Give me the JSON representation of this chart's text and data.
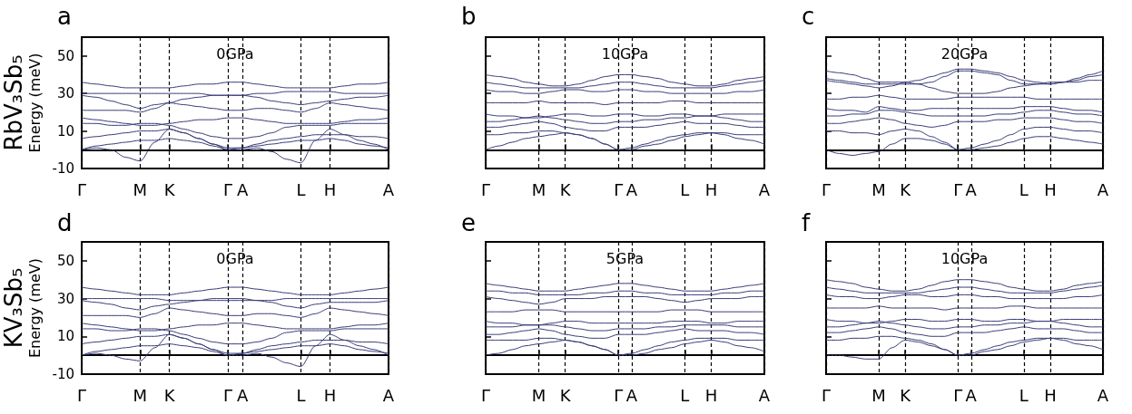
{
  "chart_data": [
    {
      "type": "line",
      "title": "a",
      "ylabel": "Energy (meV)",
      "annotations": [
        "0GPa",
        "RbV₃Sb₅"
      ],
      "categories": [
        "Γ",
        null,
        null,
        null,
        "M",
        null,
        "K",
        null,
        null,
        null,
        "Γ",
        "A",
        null,
        null,
        null,
        "L",
        null,
        "H",
        null,
        null,
        null,
        "A"
      ],
      "ylim": [
        -10,
        60
      ],
      "yticks": [
        -10,
        10,
        30,
        50
      ],
      "grid": "x",
      "line_style": "solid",
      "ref_lines": [
        {
          "axis": "y",
          "value": 0,
          "line_style": "dotted",
          "color": "#000000"
        }
      ],
      "series": [
        {
          "color": "#3a3d78",
          "values": [
            36,
            35,
            34,
            33,
            33,
            33,
            33,
            34,
            35,
            35,
            36,
            36,
            35,
            34,
            33,
            33,
            33,
            33,
            34,
            35,
            35,
            36
          ]
        },
        {
          "color": "#3a3d78",
          "values": [
            30,
            30,
            30,
            30,
            30,
            30,
            30,
            30,
            30,
            29,
            29,
            29,
            30,
            30,
            31,
            31,
            31,
            31,
            30,
            30,
            30,
            30
          ]
        },
        {
          "color": "#3a3d78",
          "values": [
            29,
            28,
            26,
            24,
            22,
            24,
            25,
            27,
            28,
            29,
            29,
            29,
            28,
            26,
            25,
            24,
            25,
            26,
            27,
            28,
            28,
            29
          ]
        },
        {
          "color": "#3a3d78",
          "values": [
            21,
            21,
            21,
            21,
            20,
            22,
            25,
            24,
            23,
            22,
            21,
            21,
            22,
            22,
            21,
            20,
            22,
            25,
            24,
            23,
            22,
            21
          ]
        },
        {
          "color": "#3a3d78",
          "values": [
            17,
            16,
            15,
            14,
            13,
            13,
            14,
            15,
            16,
            16,
            17,
            17,
            16,
            15,
            14,
            14,
            14,
            14,
            15,
            16,
            16,
            17
          ]
        },
        {
          "color": "#3a3d78",
          "values": [
            14,
            14,
            13,
            13,
            14,
            14,
            13,
            11,
            9,
            7,
            6,
            6,
            7,
            9,
            12,
            13,
            13,
            13,
            14,
            14,
            14,
            14
          ]
        },
        {
          "color": "#3a3d78",
          "values": [
            6,
            7,
            8,
            9,
            10,
            10,
            11,
            9,
            6,
            3,
            1,
            1,
            3,
            5,
            6,
            7,
            8,
            8,
            8,
            7,
            7,
            6
          ]
        },
        {
          "color": "#3a3d78",
          "values": [
            0,
            2,
            3,
            4,
            5,
            5,
            6,
            5,
            4,
            2,
            0,
            1,
            2,
            3,
            4,
            5,
            5,
            6,
            5,
            3,
            2,
            1
          ]
        },
        {
          "color": "#3a3d78",
          "values": [
            0,
            1,
            0,
            -4,
            -6,
            4,
            11,
            9,
            6,
            3,
            0,
            0,
            1,
            -1,
            -5,
            -7,
            5,
            11,
            8,
            5,
            3,
            0
          ]
        }
      ]
    },
    {
      "type": "line",
      "title": "b",
      "annotations": [
        "10GPa"
      ],
      "tick_labels": "x",
      "categories": [
        "Γ",
        null,
        null,
        null,
        "M",
        null,
        "K",
        null,
        null,
        null,
        "Γ",
        "A",
        null,
        null,
        null,
        "L",
        null,
        "H",
        null,
        null,
        null,
        "A"
      ],
      "ylim": [
        -10,
        60
      ],
      "yticks": [
        -10,
        10,
        30,
        50
      ],
      "grid": "x",
      "line_style": "solid",
      "ref_lines": [
        {
          "axis": "y",
          "value": 0,
          "line_style": "dotted",
          "color": "#000000"
        }
      ],
      "series": [
        {
          "color": "#3a3d78",
          "values": [
            40,
            39,
            38,
            36,
            35,
            34,
            34,
            35,
            37,
            39,
            40,
            40,
            39,
            38,
            36,
            35,
            34,
            34,
            35,
            37,
            38,
            39
          ]
        },
        {
          "color": "#3a3d78",
          "values": [
            36,
            35,
            34,
            33,
            33,
            33,
            33,
            33,
            34,
            35,
            36,
            36,
            35,
            34,
            33,
            33,
            33,
            33,
            34,
            35,
            36,
            37
          ]
        },
        {
          "color": "#3a3d78",
          "values": [
            32,
            31,
            31,
            30,
            30,
            31,
            32,
            32,
            31,
            31,
            32,
            32,
            31,
            31,
            30,
            30,
            30,
            30,
            30,
            31,
            31,
            32
          ]
        },
        {
          "color": "#3a3d78",
          "values": [
            25,
            25,
            25,
            25,
            26,
            25,
            25,
            25,
            25,
            24,
            25,
            25,
            25,
            25,
            26,
            26,
            25,
            25,
            25,
            25,
            25,
            25
          ]
        },
        {
          "color": "#3a3d78",
          "values": [
            19,
            18,
            18,
            17,
            17,
            18,
            19,
            19,
            18,
            18,
            19,
            19,
            18,
            18,
            19,
            19,
            18,
            18,
            19,
            19,
            19,
            19
          ]
        },
        {
          "color": "#3a3d78",
          "values": [
            15,
            15,
            16,
            17,
            18,
            17,
            16,
            15,
            14,
            14,
            15,
            15,
            16,
            16,
            17,
            17,
            18,
            18,
            17,
            16,
            15,
            15
          ]
        },
        {
          "color": "#3a3d78",
          "values": [
            12,
            12,
            13,
            14,
            15,
            14,
            12,
            11,
            10,
            10,
            12,
            12,
            12,
            13,
            14,
            15,
            14,
            14,
            14,
            13,
            12,
            12
          ]
        },
        {
          "color": "#3a3d78",
          "values": [
            8,
            8,
            9,
            9,
            10,
            10,
            9,
            8,
            6,
            3,
            0,
            1,
            3,
            5,
            7,
            8,
            9,
            9,
            9,
            8,
            8,
            8
          ]
        },
        {
          "color": "#3a3d78",
          "values": [
            0,
            2,
            4,
            6,
            7,
            8,
            9,
            8,
            6,
            3,
            0,
            0,
            2,
            3,
            5,
            7,
            8,
            9,
            8,
            6,
            5,
            3
          ]
        }
      ]
    },
    {
      "type": "line",
      "title": "c",
      "annotations": [
        "20GPa"
      ],
      "tick_labels": "x",
      "categories": [
        "Γ",
        null,
        null,
        null,
        "M",
        null,
        "K",
        null,
        null,
        null,
        "Γ",
        "A",
        null,
        null,
        null,
        "L",
        null,
        "H",
        null,
        null,
        null,
        "A"
      ],
      "ylim": [
        -10,
        60
      ],
      "yticks": [
        -10,
        10,
        30,
        50
      ],
      "grid": "x",
      "line_style": "solid",
      "ref_lines": [
        {
          "axis": "y",
          "value": 0,
          "line_style": "dotted",
          "color": "#000000"
        }
      ],
      "series": [
        {
          "color": "#3a3d78",
          "values": [
            42,
            41,
            40,
            38,
            36,
            36,
            36,
            37,
            39,
            41,
            43,
            43,
            42,
            41,
            39,
            37,
            36,
            35,
            36,
            38,
            40,
            42
          ]
        },
        {
          "color": "#3a3d78",
          "values": [
            38,
            37,
            36,
            35,
            35,
            35,
            35,
            35,
            36,
            39,
            42,
            42,
            41,
            40,
            37,
            35,
            35,
            35,
            36,
            37,
            39,
            40
          ]
        },
        {
          "color": "#3a3d78",
          "values": [
            37,
            36,
            35,
            34,
            33,
            34,
            36,
            35,
            33,
            31,
            30,
            30,
            30,
            31,
            33,
            34,
            35,
            36,
            36,
            36,
            37,
            37
          ]
        },
        {
          "color": "#3a3d78",
          "values": [
            27,
            27,
            28,
            28,
            29,
            28,
            27,
            27,
            27,
            27,
            28,
            28,
            28,
            28,
            28,
            28,
            27,
            27,
            27,
            27,
            27,
            27
          ]
        },
        {
          "color": "#3a3d78",
          "values": [
            22,
            21,
            21,
            20,
            23,
            22,
            21,
            21,
            22,
            22,
            22,
            22,
            22,
            22,
            22,
            23,
            23,
            23,
            22,
            21,
            21,
            20
          ]
        },
        {
          "color": "#3a3d78",
          "values": [
            18,
            18,
            19,
            19,
            21,
            21,
            20,
            19,
            18,
            18,
            18,
            18,
            18,
            19,
            19,
            20,
            21,
            21,
            20,
            19,
            19,
            18
          ]
        },
        {
          "color": "#3a3d78",
          "values": [
            14,
            14,
            15,
            16,
            17,
            16,
            14,
            13,
            12,
            13,
            15,
            15,
            15,
            16,
            16,
            17,
            17,
            17,
            16,
            15,
            15,
            14
          ]
        },
        {
          "color": "#3a3d78",
          "values": [
            10,
            10,
            9,
            9,
            8,
            10,
            11,
            10,
            7,
            4,
            0,
            1,
            3,
            5,
            8,
            11,
            12,
            12,
            11,
            10,
            10,
            9
          ]
        },
        {
          "color": "#3a3d78",
          "values": [
            0,
            -2,
            -3,
            -2,
            -1,
            3,
            6,
            6,
            5,
            3,
            0,
            0,
            1,
            2,
            4,
            6,
            7,
            7,
            6,
            5,
            4,
            3
          ]
        }
      ]
    },
    {
      "type": "line",
      "title": "d",
      "ylabel": "Energy (meV)",
      "annotations": [
        "0GPa",
        "KV₃Sb₅"
      ],
      "categories": [
        "Γ",
        null,
        null,
        null,
        "M",
        null,
        "K",
        null,
        null,
        null,
        "Γ",
        "A",
        null,
        null,
        null,
        "L",
        null,
        "H",
        null,
        null,
        null,
        "A"
      ],
      "ylim": [
        -10,
        60
      ],
      "yticks": [
        -10,
        10,
        30,
        50
      ],
      "grid": "x",
      "line_style": "solid",
      "ref_lines": [
        {
          "axis": "y",
          "value": 0,
          "line_style": "dotted",
          "color": "#000000"
        }
      ],
      "series": [
        {
          "color": "#3a3d78",
          "values": [
            36,
            35,
            34,
            33,
            32,
            32,
            32,
            33,
            34,
            35,
            36,
            36,
            35,
            34,
            33,
            32,
            32,
            32,
            33,
            34,
            35,
            36
          ]
        },
        {
          "color": "#3a3d78",
          "values": [
            30,
            30,
            30,
            30,
            30,
            30,
            29,
            29,
            29,
            29,
            29,
            29,
            29,
            29,
            30,
            30,
            30,
            30,
            30,
            30,
            30,
            30
          ]
        },
        {
          "color": "#3a3d78",
          "values": [
            29,
            28,
            27,
            25,
            24,
            26,
            27,
            28,
            29,
            30,
            30,
            30,
            29,
            28,
            26,
            25,
            27,
            28,
            28,
            28,
            28,
            29
          ]
        },
        {
          "color": "#3a3d78",
          "values": [
            21,
            21,
            21,
            21,
            20,
            22,
            25,
            24,
            23,
            22,
            21,
            21,
            22,
            22,
            21,
            20,
            22,
            25,
            24,
            23,
            22,
            21
          ]
        },
        {
          "color": "#3a3d78",
          "values": [
            17,
            16,
            15,
            14,
            13,
            13,
            14,
            15,
            16,
            16,
            17,
            17,
            16,
            15,
            14,
            14,
            14,
            14,
            15,
            16,
            16,
            17
          ]
        },
        {
          "color": "#3a3d78",
          "values": [
            14,
            14,
            13,
            13,
            14,
            14,
            13,
            11,
            9,
            7,
            6,
            6,
            7,
            9,
            12,
            13,
            13,
            13,
            14,
            14,
            14,
            14
          ]
        },
        {
          "color": "#3a3d78",
          "values": [
            6,
            7,
            8,
            9,
            10,
            10,
            11,
            9,
            6,
            3,
            1,
            1,
            3,
            5,
            6,
            7,
            8,
            8,
            8,
            7,
            7,
            6
          ]
        },
        {
          "color": "#3a3d78",
          "values": [
            0,
            2,
            3,
            4,
            5,
            5,
            6,
            5,
            4,
            2,
            0,
            1,
            2,
            3,
            4,
            5,
            5,
            6,
            5,
            3,
            2,
            1
          ]
        },
        {
          "color": "#3a3d78",
          "values": [
            0,
            1,
            0,
            -2,
            -3,
            4,
            11,
            9,
            6,
            3,
            0,
            0,
            1,
            -1,
            -4,
            -6,
            5,
            11,
            8,
            5,
            3,
            0
          ]
        }
      ]
    },
    {
      "type": "line",
      "title": "e",
      "annotations": [
        "5GPa"
      ],
      "tick_labels": "x",
      "categories": [
        "Γ",
        null,
        null,
        null,
        "M",
        null,
        "K",
        null,
        null,
        null,
        "Γ",
        "A",
        null,
        null,
        null,
        "L",
        null,
        "H",
        null,
        null,
        null,
        "A"
      ],
      "ylim": [
        -10,
        60
      ],
      "yticks": [
        -10,
        10,
        30,
        50
      ],
      "grid": "x",
      "line_style": "solid",
      "ref_lines": [
        {
          "axis": "y",
          "value": 0,
          "line_style": "dotted",
          "color": "#000000"
        }
      ],
      "series": [
        {
          "color": "#3a3d78",
          "values": [
            38,
            37,
            36,
            35,
            34,
            34,
            34,
            35,
            36,
            37,
            38,
            38,
            37,
            36,
            35,
            34,
            34,
            34,
            35,
            36,
            37,
            38
          ]
        },
        {
          "color": "#3a3d78",
          "values": [
            34,
            34,
            33,
            33,
            32,
            32,
            32,
            32,
            33,
            33,
            34,
            34,
            33,
            33,
            32,
            32,
            32,
            32,
            33,
            33,
            34,
            34
          ]
        },
        {
          "color": "#3a3d78",
          "values": [
            31,
            30,
            29,
            28,
            27,
            28,
            30,
            30,
            30,
            31,
            31,
            31,
            31,
            30,
            29,
            28,
            29,
            30,
            30,
            30,
            31,
            31
          ]
        },
        {
          "color": "#3a3d78",
          "values": [
            23,
            23,
            23,
            24,
            24,
            24,
            23,
            23,
            23,
            23,
            23,
            23,
            23,
            23,
            24,
            24,
            24,
            23,
            23,
            23,
            23,
            23
          ]
        },
        {
          "color": "#3a3d78",
          "values": [
            18,
            17,
            17,
            16,
            16,
            17,
            18,
            18,
            17,
            17,
            17,
            17,
            17,
            17,
            18,
            18,
            18,
            17,
            17,
            18,
            18,
            18
          ]
        },
        {
          "color": "#3a3d78",
          "values": [
            15,
            15,
            15,
            16,
            16,
            16,
            15,
            14,
            13,
            13,
            14,
            14,
            14,
            15,
            15,
            16,
            16,
            16,
            16,
            15,
            15,
            15
          ]
        },
        {
          "color": "#3a3d78",
          "values": [
            11,
            11,
            12,
            13,
            14,
            13,
            11,
            10,
            9,
            9,
            11,
            11,
            11,
            12,
            13,
            14,
            13,
            13,
            13,
            12,
            12,
            11
          ]
        },
        {
          "color": "#3a3d78",
          "values": [
            8,
            8,
            8,
            8,
            9,
            9,
            8,
            7,
            5,
            3,
            0,
            1,
            3,
            5,
            7,
            8,
            9,
            9,
            9,
            8,
            8,
            8
          ]
        },
        {
          "color": "#3a3d78",
          "values": [
            0,
            1,
            3,
            5,
            6,
            7,
            8,
            7,
            5,
            3,
            0,
            0,
            1,
            3,
            4,
            6,
            7,
            8,
            7,
            5,
            4,
            2
          ]
        }
      ]
    },
    {
      "type": "line",
      "title": "f",
      "annotations": [
        "10GPa"
      ],
      "tick_labels": "x",
      "categories": [
        "Γ",
        null,
        null,
        null,
        "M",
        null,
        "K",
        null,
        null,
        null,
        "Γ",
        "A",
        null,
        null,
        null,
        "L",
        null,
        "H",
        null,
        null,
        null,
        "A"
      ],
      "ylim": [
        -10,
        60
      ],
      "yticks": [
        -10,
        10,
        30,
        50
      ],
      "grid": "x",
      "line_style": "solid",
      "ref_lines": [
        {
          "axis": "y",
          "value": 0,
          "line_style": "dotted",
          "color": "#000000"
        }
      ],
      "series": [
        {
          "color": "#3a3d78",
          "values": [
            40,
            39,
            38,
            36,
            35,
            34,
            34,
            35,
            37,
            39,
            40,
            40,
            39,
            38,
            36,
            35,
            34,
            34,
            35,
            37,
            38,
            39
          ]
        },
        {
          "color": "#3a3d78",
          "values": [
            36,
            35,
            34,
            33,
            33,
            33,
            33,
            33,
            34,
            35,
            36,
            36,
            35,
            34,
            33,
            33,
            33,
            33,
            34,
            35,
            36,
            37
          ]
        },
        {
          "color": "#3a3d78",
          "values": [
            32,
            31,
            31,
            30,
            30,
            31,
            32,
            32,
            31,
            31,
            32,
            32,
            31,
            31,
            30,
            30,
            30,
            30,
            30,
            31,
            31,
            32
          ]
        },
        {
          "color": "#3a3d78",
          "values": [
            25,
            25,
            25,
            25,
            26,
            25,
            25,
            25,
            25,
            24,
            25,
            25,
            25,
            25,
            26,
            26,
            25,
            25,
            25,
            25,
            25,
            25
          ]
        },
        {
          "color": "#3a3d78",
          "values": [
            19,
            18,
            18,
            17,
            17,
            18,
            19,
            19,
            18,
            18,
            19,
            19,
            18,
            18,
            19,
            19,
            18,
            18,
            19,
            19,
            19,
            19
          ]
        },
        {
          "color": "#3a3d78",
          "values": [
            15,
            15,
            16,
            17,
            18,
            17,
            16,
            15,
            14,
            14,
            15,
            15,
            16,
            16,
            17,
            17,
            18,
            18,
            17,
            16,
            15,
            15
          ]
        },
        {
          "color": "#3a3d78",
          "values": [
            12,
            12,
            13,
            14,
            15,
            14,
            12,
            11,
            10,
            10,
            12,
            12,
            12,
            13,
            14,
            15,
            14,
            14,
            14,
            13,
            12,
            12
          ]
        },
        {
          "color": "#3a3d78",
          "values": [
            8,
            8,
            9,
            9,
            10,
            10,
            9,
            8,
            6,
            3,
            0,
            1,
            3,
            5,
            7,
            8,
            9,
            9,
            9,
            8,
            8,
            8
          ]
        },
        {
          "color": "#3a3d78",
          "values": [
            0,
            0,
            -1,
            -2,
            -2,
            4,
            8,
            7,
            5,
            3,
            0,
            0,
            2,
            3,
            5,
            7,
            8,
            9,
            8,
            6,
            5,
            3
          ]
        }
      ]
    }
  ]
}
